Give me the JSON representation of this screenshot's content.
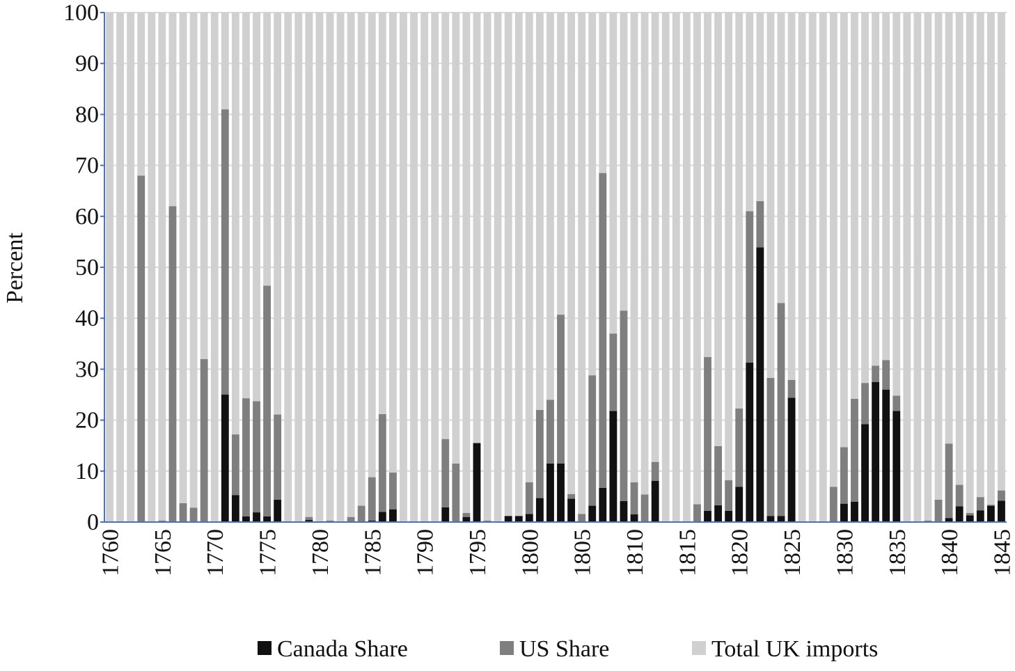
{
  "chart_data": {
    "type": "stacked_bar",
    "ylabel": "Percent",
    "categories": [
      1760,
      null,
      null,
      null,
      null,
      1765,
      null,
      null,
      null,
      null,
      1770,
      null,
      null,
      null,
      null,
      1775,
      null,
      null,
      null,
      null,
      1780,
      null,
      null,
      null,
      null,
      1785,
      null,
      null,
      null,
      null,
      1790,
      null,
      null,
      null,
      null,
      1795,
      null,
      null,
      null,
      null,
      1800,
      null,
      null,
      null,
      null,
      1805,
      null,
      null,
      null,
      null,
      1810,
      null,
      null,
      null,
      null,
      1815,
      null,
      null,
      null,
      null,
      1820,
      null,
      null,
      null,
      null,
      1825,
      null,
      null,
      null,
      null,
      1830,
      null,
      null,
      null,
      null,
      1835,
      null,
      null,
      null,
      null,
      1840,
      null,
      null,
      null,
      null,
      1845
    ],
    "series": [
      {
        "name": "Canada Share",
        "color": "#111111",
        "values": [
          0,
          0,
          0,
          0,
          0,
          0,
          0,
          0,
          0,
          0,
          0,
          25,
          5.3,
          1.1,
          1.9,
          1.1,
          4.4,
          0,
          0,
          0.4,
          0,
          0,
          0,
          0,
          0,
          0.3,
          2,
          2.5,
          0,
          0,
          0,
          0,
          2.9,
          0,
          1,
          15.5,
          0,
          0,
          1.2,
          1.2,
          1.6,
          4.7,
          11.5,
          11.5,
          4.6,
          0,
          3.2,
          6.7,
          21.8,
          4.1,
          1.5,
          0,
          8.1,
          0,
          0,
          0,
          0,
          2.2,
          3.3,
          2.2,
          6.9,
          31.3,
          53.9,
          1.2,
          1.2,
          24.4,
          0,
          0,
          0,
          0,
          3.6,
          4,
          19.2,
          27.5,
          26,
          21.8,
          0,
          0,
          0,
          0,
          0.8,
          3.1,
          1.3,
          2.3,
          3.2,
          4.2
        ]
      },
      {
        "name": "US Share",
        "color": "#7f7f7f",
        "values": [
          0,
          0,
          0,
          68,
          0,
          0.3,
          62,
          3.7,
          2.8,
          32,
          0,
          56,
          11.9,
          23.2,
          21.8,
          45.3,
          16.7,
          0,
          0,
          0.6,
          0,
          0.3,
          0,
          1,
          3.2,
          8.5,
          19.2,
          7.2,
          0,
          0,
          0,
          0,
          13.4,
          11.5,
          0.8,
          0,
          0.3,
          0,
          0,
          0,
          6.2,
          17.3,
          12.5,
          29.2,
          0.9,
          1.6,
          25.6,
          61.8,
          15.2,
          37.4,
          6.3,
          5.4,
          3.7,
          0,
          0,
          0,
          3.5,
          30.2,
          11.6,
          6,
          15.4,
          29.7,
          9.1,
          27.1,
          41.8,
          3.5,
          0,
          0,
          0,
          6.9,
          11.1,
          20.2,
          8.1,
          3.2,
          5.8,
          3,
          0,
          0,
          0.3,
          4.4,
          14.6,
          4.2,
          0.5,
          2.6,
          0.2,
          2
        ]
      },
      {
        "name": "Total UK imports",
        "color": "#d0d0d0",
        "values": [
          100,
          100,
          100,
          32,
          100,
          99.7,
          38,
          96.3,
          97.2,
          68,
          100,
          19,
          82.8,
          75.7,
          76.3,
          53.6,
          78.9,
          100,
          100,
          99,
          100,
          99.7,
          100,
          99,
          96.8,
          91.2,
          78.8,
          90.3,
          100,
          100,
          100,
          100,
          83.7,
          88.5,
          98.2,
          84.5,
          99.7,
          100,
          98.8,
          98.8,
          92.2,
          78,
          76,
          59.3,
          94.5,
          98.4,
          71.2,
          31.5,
          63,
          58.5,
          92.2,
          94.6,
          88.2,
          100,
          100,
          100,
          96.5,
          67.6,
          85.1,
          91.8,
          77.7,
          39,
          37,
          71.7,
          57,
          72.1,
          100,
          100,
          100,
          93.1,
          85.3,
          75.8,
          72.7,
          69.3,
          68.2,
          75.2,
          100,
          100,
          99.7,
          95.6,
          84.6,
          92.7,
          98.2,
          95.1,
          96.6,
          93.8
        ]
      }
    ],
    "ylim": [
      0,
      100
    ],
    "yticks": [
      0,
      10,
      20,
      30,
      40,
      50,
      60,
      70,
      80,
      90,
      100
    ],
    "grid": true,
    "legend": "bottom"
  }
}
